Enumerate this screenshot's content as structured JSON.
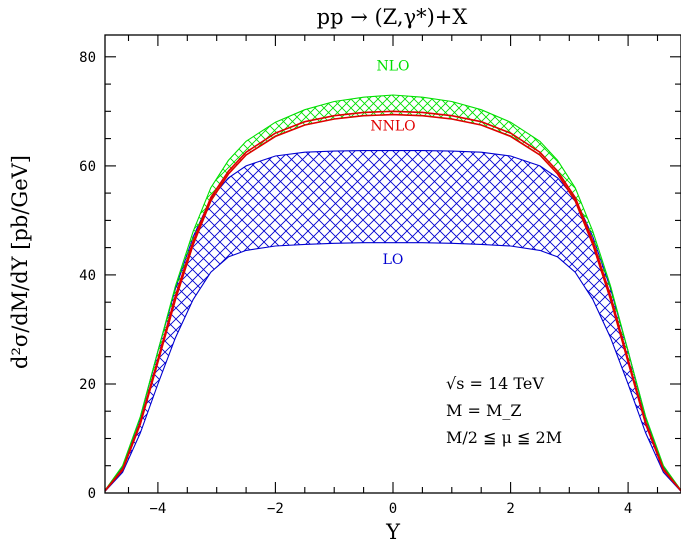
{
  "chart_data": {
    "type": "area",
    "title": "pp → (Z,γ*)+X",
    "xlabel": "Y",
    "ylabel": "d²σ/dM/dY [pb/GeV]",
    "xlim": [
      -4.9,
      4.9
    ],
    "ylim": [
      0,
      84
    ],
    "x_ticks": [
      -4,
      -2,
      0,
      2,
      4
    ],
    "y_ticks": [
      0,
      20,
      40,
      60,
      80
    ],
    "grid": false,
    "x": [
      -4.9,
      -4.6,
      -4.3,
      -4.0,
      -3.7,
      -3.4,
      -3.1,
      -2.8,
      -2.5,
      -2.0,
      -1.5,
      -1.0,
      -0.5,
      0.0,
      0.5,
      1.0,
      1.5,
      2.0,
      2.5,
      2.8,
      3.1,
      3.4,
      3.7,
      4.0,
      4.3,
      4.6,
      4.9
    ],
    "series": [
      {
        "name": "NLO",
        "color": "#00e000",
        "upper": [
          0.5,
          5,
          14,
          26,
          38,
          48,
          56,
          61,
          64.5,
          68,
          70.3,
          71.8,
          72.6,
          73,
          72.6,
          71.8,
          70.3,
          68,
          64.5,
          61,
          56,
          48,
          38,
          26,
          14,
          5,
          0.5
        ],
        "lower": [
          0.5,
          4.5,
          13,
          24,
          35.5,
          45.5,
          53.5,
          58.5,
          62,
          65.5,
          67.5,
          68.6,
          69.2,
          69.4,
          69.2,
          68.6,
          67.5,
          65.5,
          62,
          58.5,
          53.5,
          45.5,
          35.5,
          24,
          13,
          4.5,
          0.5
        ]
      },
      {
        "name": "NNLO",
        "color": "#e00000",
        "upper": [
          0.4,
          4.4,
          13,
          24.5,
          36.2,
          46.2,
          54.2,
          59,
          62.5,
          66,
          68.1,
          69.2,
          69.8,
          70,
          69.8,
          69.2,
          68.1,
          66,
          62.5,
          59,
          54.2,
          46.2,
          36.2,
          24.5,
          13,
          4.4,
          0.4
        ],
        "lower": [
          0.4,
          4.2,
          12.6,
          24,
          35.5,
          45.6,
          53.6,
          58.5,
          62,
          65.4,
          67.5,
          68.6,
          69.2,
          69.4,
          69.2,
          68.6,
          67.5,
          65.4,
          62,
          58.5,
          53.6,
          45.6,
          35.5,
          24,
          12.6,
          4.2,
          0.4
        ]
      },
      {
        "name": "LO",
        "color": "#0000d0",
        "upper": [
          0.5,
          4.8,
          13.8,
          26,
          37.5,
          47,
          54,
          57.8,
          60,
          61.8,
          62.5,
          62.7,
          62.8,
          62.8,
          62.8,
          62.7,
          62.5,
          61.8,
          60,
          57.8,
          54,
          47,
          37.5,
          26,
          13.8,
          4.8,
          0.5
        ],
        "lower": [
          0.3,
          3.8,
          11,
          20,
          28.5,
          35.5,
          40.5,
          43.3,
          44.5,
          45.3,
          45.6,
          45.8,
          45.9,
          45.9,
          45.9,
          45.8,
          45.6,
          45.3,
          44.5,
          43.3,
          40.5,
          35.5,
          28.5,
          20,
          11,
          3.8,
          0.3
        ]
      }
    ],
    "annotations": [
      "√s = 14 TeV",
      "M = M_Z",
      "M/2 ≦ μ ≦ 2M"
    ]
  }
}
